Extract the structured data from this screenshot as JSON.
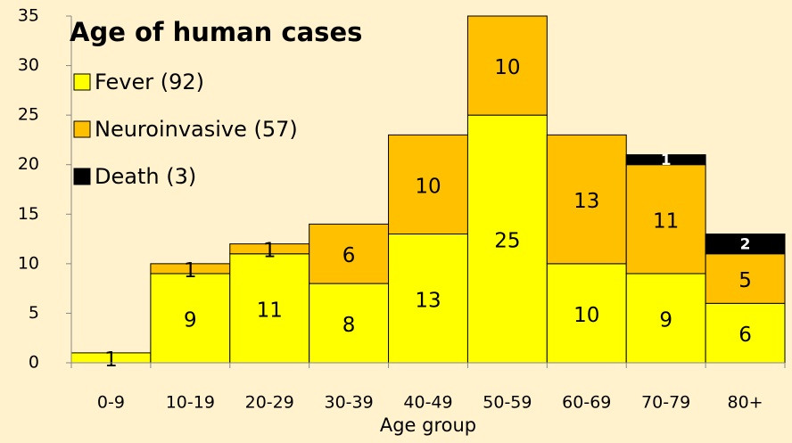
{
  "chart_data": {
    "type": "stacked_bar",
    "title": "Age of human cases",
    "x_label": "Age group",
    "categories": [
      "0-9",
      "10-19",
      "20-29",
      "30-39",
      "40-49",
      "50-59",
      "60-69",
      "70-79",
      "80+"
    ],
    "series": [
      {
        "name": "Fever (92)",
        "color": "#ffff00",
        "values": [
          1,
          9,
          11,
          8,
          13,
          25,
          10,
          9,
          6
        ]
      },
      {
        "name": "Neuroinvasive (57)",
        "color": "#ffc000",
        "values": [
          null,
          1,
          1,
          6,
          10,
          10,
          13,
          11,
          5
        ]
      },
      {
        "name": "Death (3)",
        "color": "#000000",
        "values": [
          null,
          null,
          null,
          null,
          null,
          null,
          null,
          1,
          2
        ]
      }
    ],
    "ylim": [
      0,
      35
    ],
    "yticks": [
      0,
      5,
      10,
      15,
      20,
      25,
      30,
      35
    ],
    "grid": false
  }
}
